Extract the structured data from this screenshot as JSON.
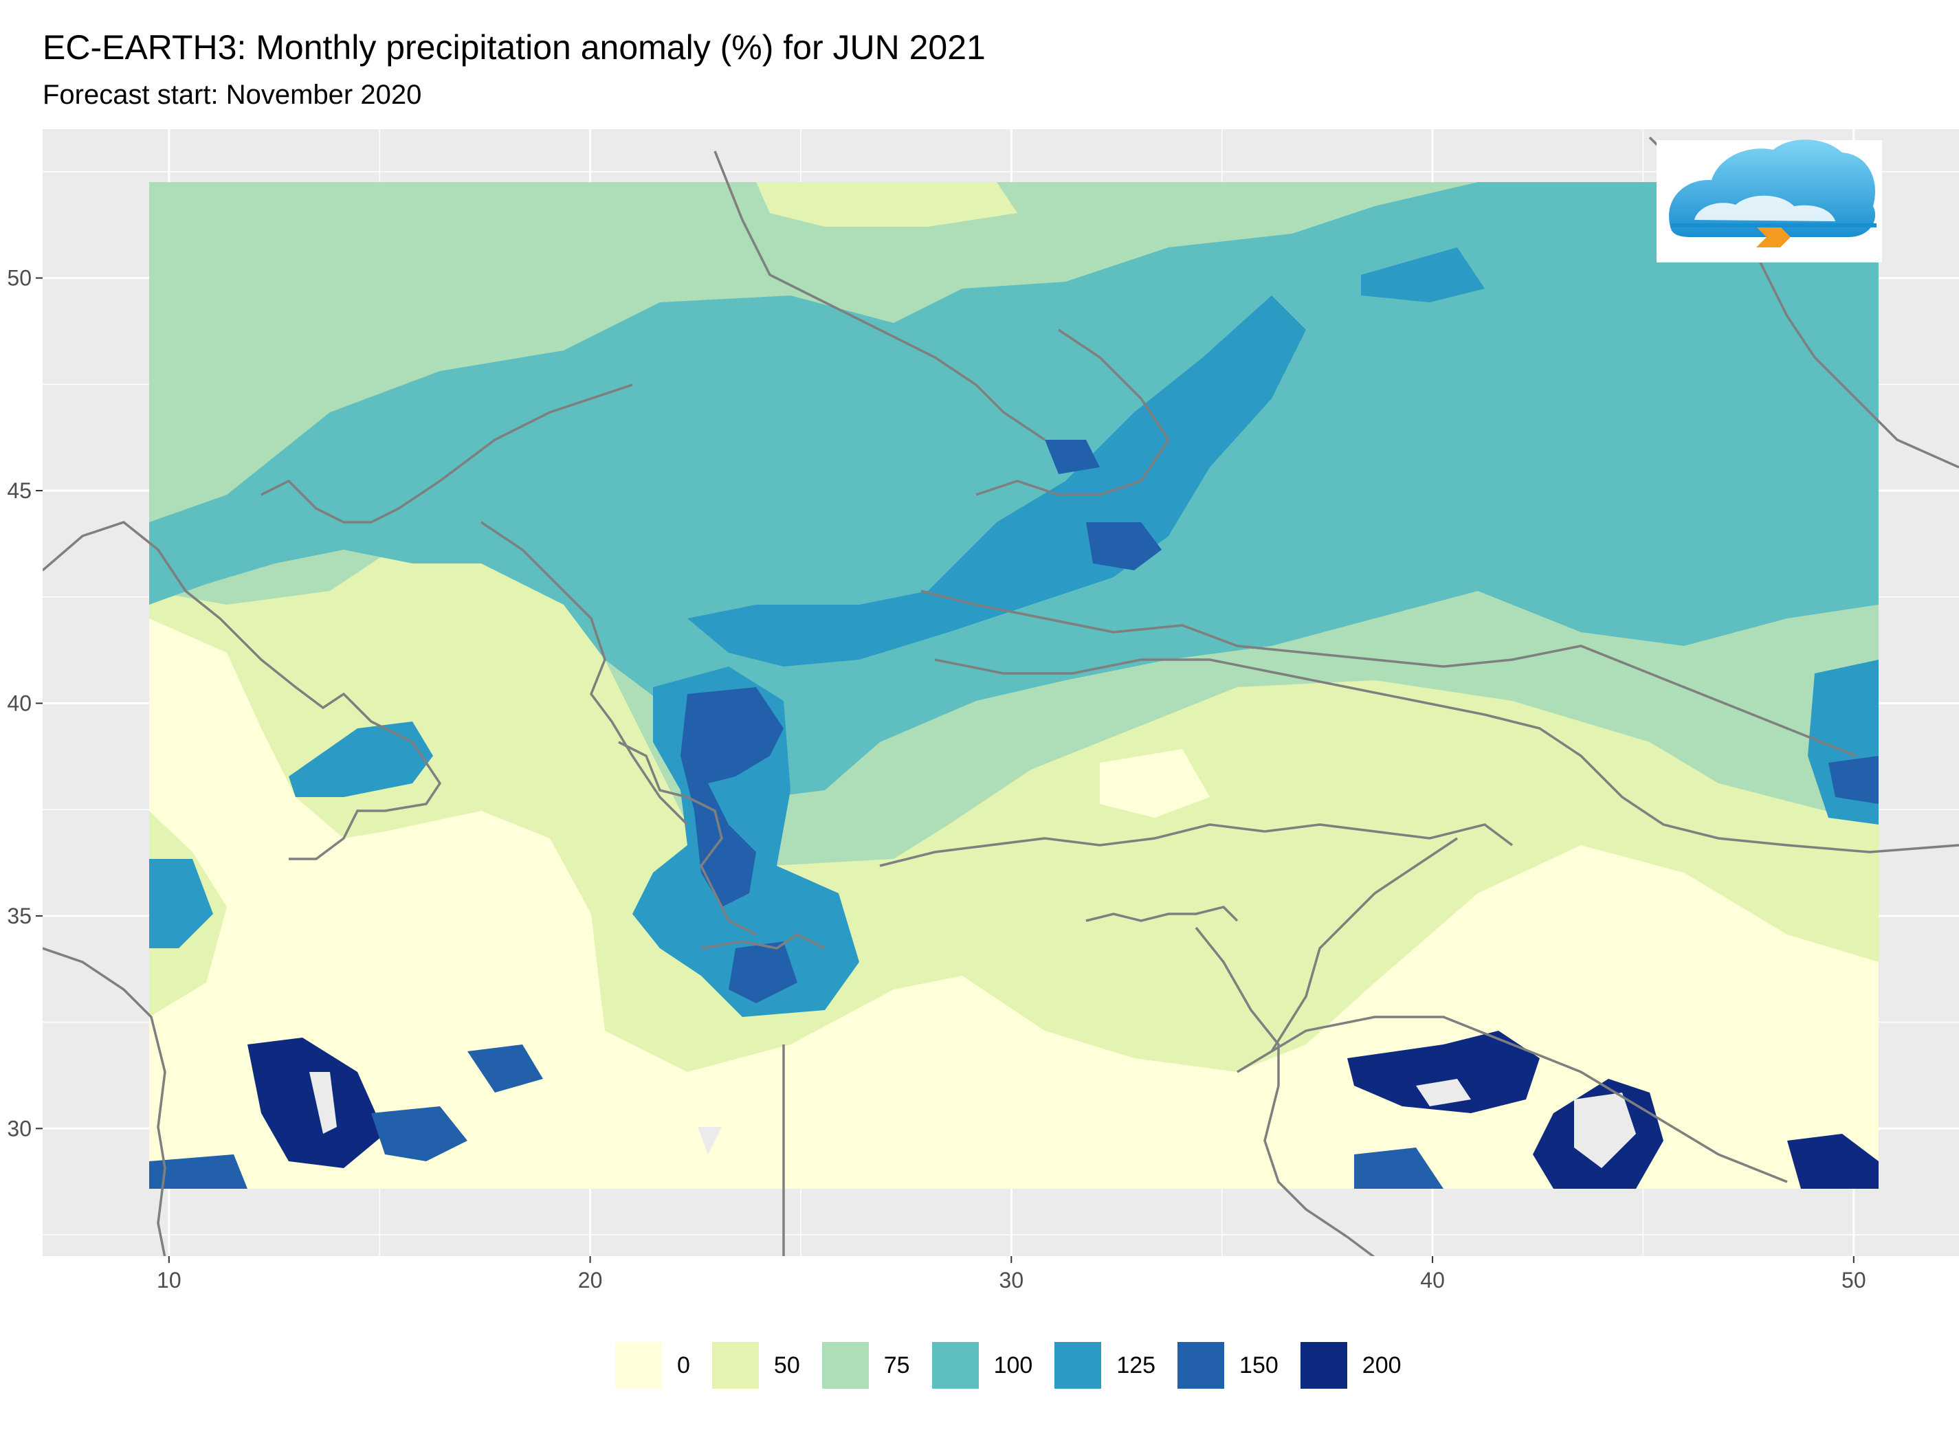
{
  "title": "EC-EARTH3: Monthly precipitation anomaly (%) for JUN 2021",
  "subtitle": "Forecast start: November 2020",
  "map": {
    "xlim": [
      7,
      52.5
    ],
    "ylim": [
      27,
      53.5
    ],
    "data_extent": {
      "lon": [
        9.5,
        51.5
      ],
      "lat": [
        28.5,
        53
      ]
    },
    "x_ticks": [
      10,
      20,
      30,
      40,
      50
    ],
    "y_ticks": [
      30,
      35,
      40,
      45,
      50
    ],
    "panel_background": "#ebebeb",
    "grid_color": "#ffffff",
    "border_color": "#7f7f7f"
  },
  "logo": {
    "name": "cloud-logo"
  },
  "legend": {
    "position": "bottom",
    "items": [
      {
        "label": "0",
        "color": "#ffffd9"
      },
      {
        "label": "50",
        "color": "#e3f4b2"
      },
      {
        "label": "75",
        "color": "#aedeb8"
      },
      {
        "label": "100",
        "color": "#5fbfc0"
      },
      {
        "label": "125",
        "color": "#2b9ac5"
      },
      {
        "label": "150",
        "color": "#2260ab"
      },
      {
        "label": "200",
        "color": "#0d2a80"
      }
    ]
  }
}
